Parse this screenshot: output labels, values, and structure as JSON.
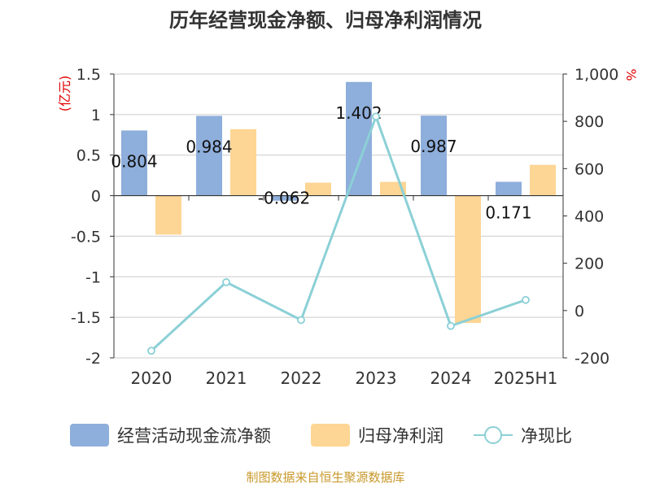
{
  "chart_data": {
    "type": "bar",
    "title": "历年经营现金净额、归母净利润情况",
    "left_axis": {
      "unit_label": "(亿元)",
      "ylim": [
        -2,
        1.5
      ],
      "ticks": [
        1.5,
        1,
        0.5,
        0,
        -0.5,
        -1,
        -1.5,
        -2
      ],
      "tick_labels": [
        "1.5",
        "1",
        "0.5",
        "0",
        "-0.5",
        "-1",
        "-1.5",
        "-2"
      ]
    },
    "right_axis": {
      "unit_label": "%",
      "ylim": [
        -200,
        1000
      ],
      "ticks": [
        1000,
        800,
        600,
        400,
        200,
        0,
        -200
      ],
      "tick_labels": [
        "1,000",
        "800",
        "600",
        "400",
        "200",
        "0",
        "-200"
      ]
    },
    "categories": [
      "2020",
      "2021",
      "2022",
      "2023",
      "2024",
      "2025H1"
    ],
    "series": [
      {
        "name": "经营活动现金流净额",
        "type": "bar",
        "axis": "left",
        "color": "#8eaedb",
        "values": [
          0.804,
          0.984,
          -0.062,
          1.402,
          0.987,
          0.171
        ],
        "labels": [
          "0.804",
          "0.984",
          "-0.062",
          "1.402",
          "0.987",
          "0.171"
        ]
      },
      {
        "name": "归母净利润",
        "type": "bar",
        "axis": "left",
        "color": "#fdd594",
        "values": [
          -0.48,
          0.82,
          0.16,
          0.17,
          -1.57,
          0.38
        ]
      },
      {
        "name": "净现比",
        "type": "line",
        "axis": "right",
        "color": "#8bd0d6",
        "values": [
          -170,
          120,
          -40,
          820,
          -65,
          45
        ]
      }
    ],
    "grid": true,
    "legend_position": "bottom"
  },
  "source_note": "制图数据来自恒生聚源数据库",
  "colors": {
    "axis": "#333333",
    "grid": "#cccccc",
    "unit_label": "#e00000",
    "source": "#c8992c"
  }
}
